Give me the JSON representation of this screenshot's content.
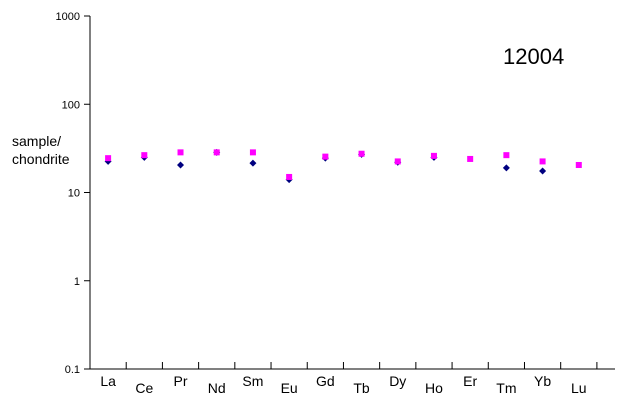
{
  "chart_data": {
    "type": "scatter",
    "y_scale": "log",
    "ylim": [
      0.1,
      1000
    ],
    "y_ticks": [
      "0.1",
      "1",
      "10",
      "100",
      "1000"
    ],
    "ylabel": [
      "sample/",
      "chondrite"
    ],
    "annotation": "12004",
    "categories": [
      "La",
      "Ce",
      "Pr",
      "Nd",
      "Sm",
      "Eu",
      "Gd",
      "Tb",
      "Dy",
      "Ho",
      "Er",
      "Tm",
      "Yb",
      "Lu"
    ],
    "grid": false,
    "legend": "none",
    "series": [
      {
        "marker": "diamond",
        "color": "#000080",
        "values": [
          22.5,
          25,
          20.5,
          28.5,
          21.5,
          14,
          24.5,
          27,
          22,
          25,
          null,
          19,
          17.5,
          null
        ]
      },
      {
        "marker": "square",
        "color": "#ff00ff",
        "values": [
          24.5,
          26.5,
          28.5,
          28.5,
          28.5,
          15,
          25.5,
          27.5,
          22.5,
          26,
          24,
          26.5,
          22.5,
          20.5
        ]
      }
    ]
  }
}
